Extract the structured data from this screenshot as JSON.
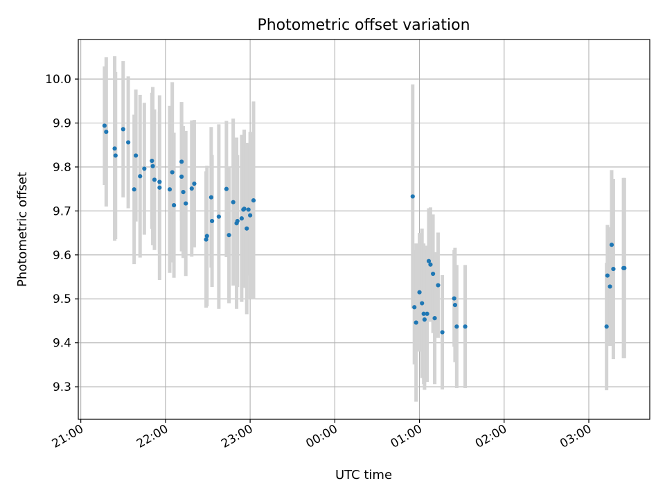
{
  "chart_data": {
    "type": "scatter",
    "title": "Photometric offset variation",
    "xlabel": "UTC time",
    "ylabel": "Photometric offset",
    "x_unit": "hours since 21:00 UTC",
    "xlim": [
      -0.03,
      6.72
    ],
    "ylim": [
      9.226,
      10.09
    ],
    "x_ticks": [
      {
        "value": 0,
        "label": "21:00"
      },
      {
        "value": 1,
        "label": "22:00"
      },
      {
        "value": 2,
        "label": "23:00"
      },
      {
        "value": 3,
        "label": "00:00"
      },
      {
        "value": 4,
        "label": "01:00"
      },
      {
        "value": 5,
        "label": "02:00"
      },
      {
        "value": 6,
        "label": "03:00"
      }
    ],
    "y_ticks": [
      {
        "value": 9.3,
        "label": "9.3"
      },
      {
        "value": 9.4,
        "label": "9.4"
      },
      {
        "value": 9.5,
        "label": "9.5"
      },
      {
        "value": 9.6,
        "label": "9.6"
      },
      {
        "value": 9.7,
        "label": "9.7"
      },
      {
        "value": 9.8,
        "label": "9.8"
      },
      {
        "value": 9.9,
        "label": "9.9"
      },
      {
        "value": 10.0,
        "label": "10.0"
      }
    ],
    "grid": true,
    "point_color": "#1f77b4",
    "errorbar_color": "#d3d3d3",
    "series": [
      {
        "x": [
          0.28,
          0.3,
          0.4,
          0.41,
          0.5,
          0.56,
          0.63,
          0.65,
          0.7,
          0.75,
          0.84,
          0.85,
          0.87,
          0.93,
          0.93,
          1.05,
          1.08,
          1.1,
          1.19,
          1.19,
          1.21,
          1.24,
          1.31,
          1.34,
          1.48,
          1.49,
          1.54,
          1.55,
          1.63,
          1.72,
          1.75,
          1.8,
          1.84,
          1.85,
          1.9,
          1.92,
          1.93,
          1.96,
          1.98,
          2.0,
          2.04,
          3.92,
          3.94,
          3.96,
          4.0,
          4.03,
          4.05,
          4.06,
          4.09,
          4.11,
          4.13,
          4.16,
          4.18,
          4.22,
          4.27,
          4.41,
          4.42,
          4.44,
          4.54,
          6.21,
          6.22,
          6.25,
          6.27,
          6.29,
          6.41,
          6.42
        ],
        "y": [
          9.894,
          9.88,
          9.842,
          9.826,
          9.886,
          9.856,
          9.749,
          9.826,
          9.779,
          9.796,
          9.814,
          9.802,
          9.771,
          9.753,
          9.766,
          9.749,
          9.788,
          9.713,
          9.812,
          9.778,
          9.743,
          9.717,
          9.751,
          9.762,
          9.635,
          9.643,
          9.731,
          9.677,
          9.687,
          9.75,
          9.645,
          9.72,
          9.672,
          9.677,
          9.683,
          9.703,
          9.705,
          9.66,
          9.703,
          9.69,
          9.724,
          9.733,
          9.481,
          9.446,
          9.515,
          9.49,
          9.466,
          9.453,
          9.466,
          9.586,
          9.578,
          9.557,
          9.456,
          9.531,
          9.424,
          9.501,
          9.486,
          9.437,
          9.437,
          9.437,
          9.553,
          9.528,
          9.623,
          9.568,
          9.57,
          9.57
        ],
        "yerr": [
          0.135,
          0.17,
          0.21,
          0.19,
          0.155,
          0.15,
          0.17,
          0.15,
          0.185,
          0.15,
          0.155,
          0.18,
          0.16,
          0.21,
          0.16,
          0.19,
          0.205,
          0.165,
          0.135,
          0.17,
          0.15,
          0.165,
          0.155,
          0.145,
          0.155,
          0.16,
          0.16,
          0.15,
          0.21,
          0.155,
          0.155,
          0.19,
          0.195,
          0.15,
          0.19,
          0.13,
          0.18,
          0.195,
          0.15,
          0.19,
          0.225,
          0.255,
          0.13,
          0.18,
          0.135,
          0.17,
          0.16,
          0.16,
          0.155,
          0.12,
          0.13,
          0.135,
          0.15,
          0.12,
          0.13,
          0.11,
          0.13,
          0.14,
          0.14,
          0.145,
          0.115,
          0.135,
          0.17,
          0.205,
          0.205,
          0.205
        ]
      }
    ]
  }
}
